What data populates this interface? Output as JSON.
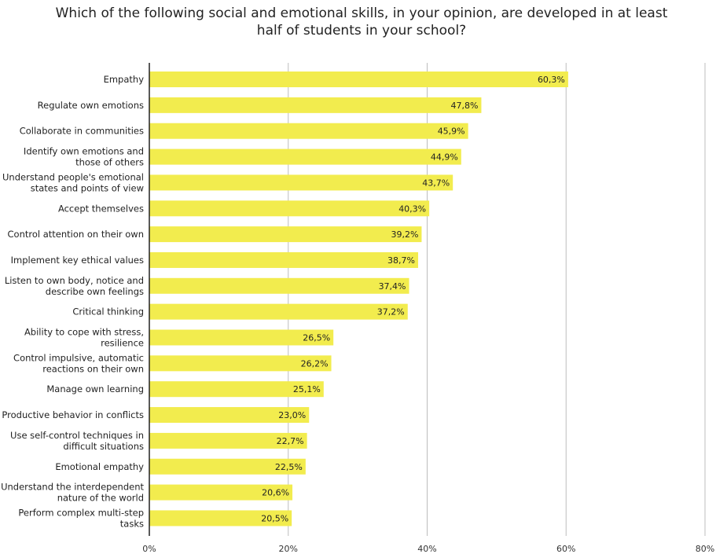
{
  "chart_data": {
    "type": "bar",
    "orientation": "horizontal",
    "title": "Which of the following social and emotional skills, in your opinion, are developed in at least half of students in your school?",
    "categories": [
      "Empathy",
      "Regulate own emotions",
      "Collaborate in communities",
      "Identify own emotions and those of others",
      "Understand people's emotional states and points of view",
      "Accept themselves",
      "Control attention on their own",
      "Implement key ethical values",
      "Listen to own body, notice and describe own feelings",
      "Critical thinking",
      "Ability to cope with stress, resilience",
      "Control impulsive, automatic reactions on their own",
      "Manage own learning",
      "Productive behavior in conflicts",
      "Use self-control techniques in difficult situations",
      "Emotional empathy",
      "Understand the interdependent nature of the world",
      "Perform complex multi-step tasks"
    ],
    "category_lines": [
      [
        "Empathy"
      ],
      [
        "Regulate own emotions"
      ],
      [
        "Collaborate in communities"
      ],
      [
        "Identify own emotions and",
        "those of others"
      ],
      [
        "Understand people's emotional",
        "states and points of view"
      ],
      [
        "Accept themselves"
      ],
      [
        "Control attention on their own"
      ],
      [
        "Implement key ethical values"
      ],
      [
        "Listen to own body, notice and",
        "describe own feelings"
      ],
      [
        "Critical thinking"
      ],
      [
        "Ability to cope with stress,",
        "resilience"
      ],
      [
        "Control impulsive, automatic",
        "reactions on their own"
      ],
      [
        "Manage own learning"
      ],
      [
        "Productive behavior in conflicts"
      ],
      [
        "Use self-control techniques in",
        "difficult situations"
      ],
      [
        "Emotional empathy"
      ],
      [
        "Understand the interdependent",
        "nature of the world"
      ],
      [
        "Perform complex multi-step",
        "tasks"
      ]
    ],
    "values": [
      60.3,
      47.8,
      45.9,
      44.9,
      43.7,
      40.3,
      39.2,
      38.7,
      37.4,
      37.2,
      26.5,
      26.2,
      25.1,
      23.0,
      22.7,
      22.5,
      20.6,
      20.5
    ],
    "value_labels": [
      "60,3%",
      "47,8%",
      "45,9%",
      "44,9%",
      "43,7%",
      "40,3%",
      "39,2%",
      "38,7%",
      "37,4%",
      "37,2%",
      "26,5%",
      "26,2%",
      "25,1%",
      "23,0%",
      "22,7%",
      "22,5%",
      "20,6%",
      "20,5%"
    ],
    "xlim": [
      0,
      80
    ],
    "xticks": [
      0,
      20,
      40,
      60,
      80
    ],
    "xtick_labels": [
      "0%",
      "20%",
      "40%",
      "60%",
      "80%"
    ],
    "grid": true,
    "legend": "none",
    "bar_color": "#f2ec4e",
    "grid_color": "#bdbdbd",
    "axis_color": "#222222"
  }
}
